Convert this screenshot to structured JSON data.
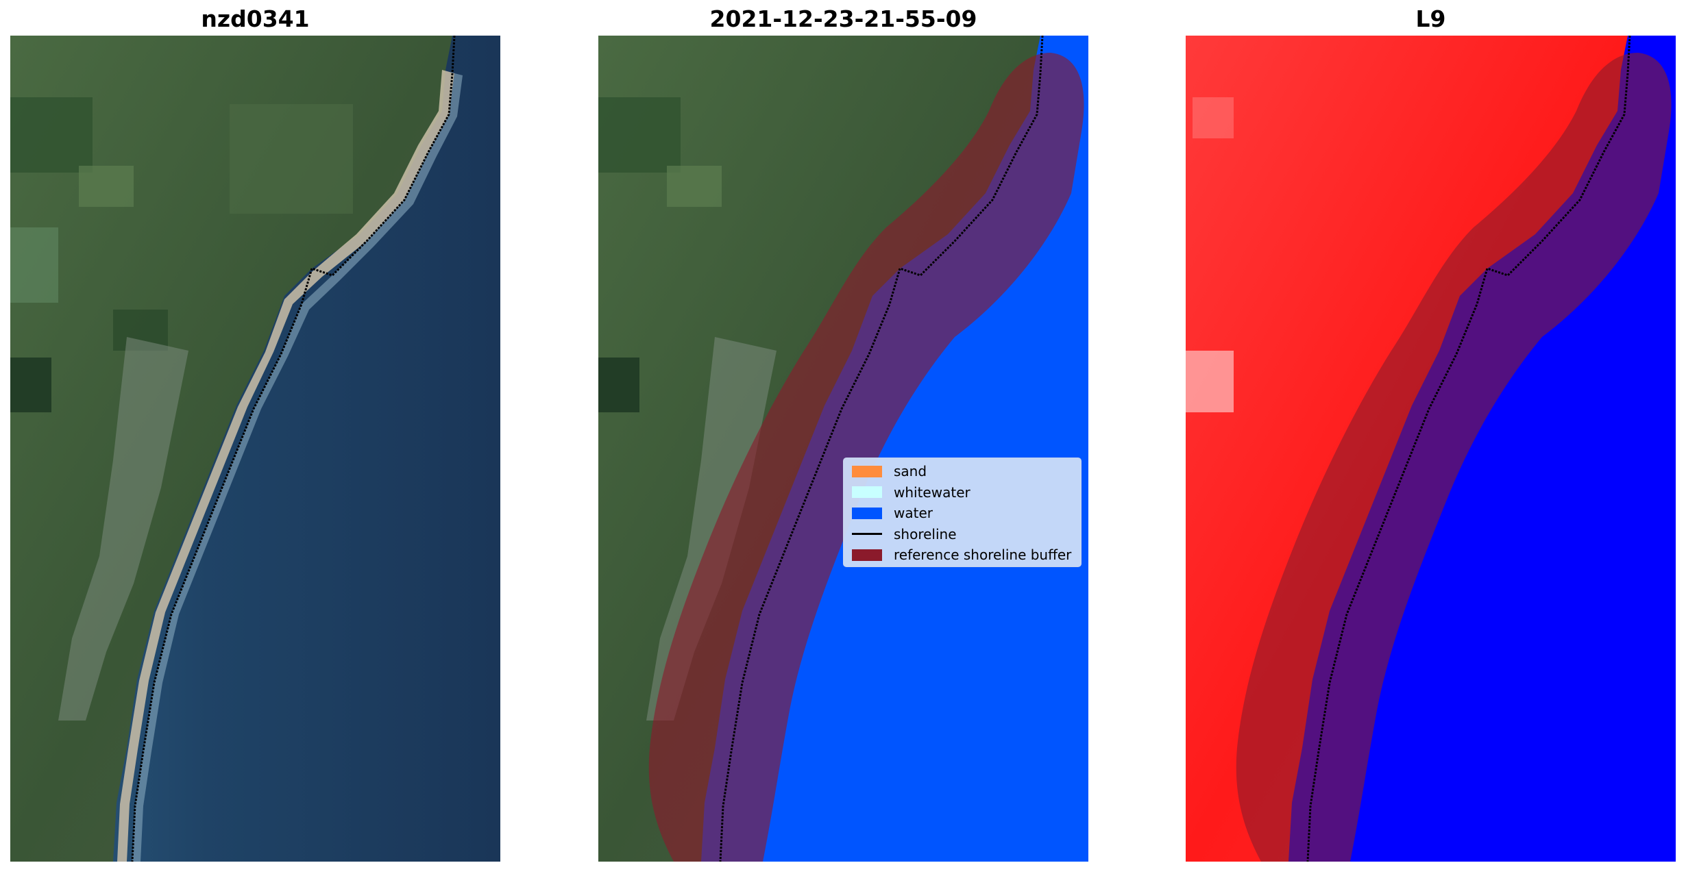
{
  "titles": {
    "left": "nzd0341",
    "center": "2021-12-23-21-55-09",
    "right": "L9"
  },
  "legend": {
    "items": [
      {
        "label": "sand",
        "color": "#ff8c3c",
        "kind": "patch"
      },
      {
        "label": "whitewater",
        "color": "#c8ffff",
        "kind": "patch"
      },
      {
        "label": "water",
        "color": "#0055ff",
        "kind": "patch"
      },
      {
        "label": "shoreline",
        "color": "#000000",
        "kind": "line"
      },
      {
        "label": "reference shoreline buffer",
        "color": "#8b1a2b",
        "kind": "patch"
      }
    ]
  },
  "colors": {
    "water_classified": "#0055ff",
    "ocean_rgb": "#1e3f62",
    "land_rgb": "#3d5a3a",
    "index_positive": "#ff1a1a",
    "index_negative": "#0000ff",
    "buffer_overlay": "#8b1a2b",
    "shoreline": "#000000"
  }
}
